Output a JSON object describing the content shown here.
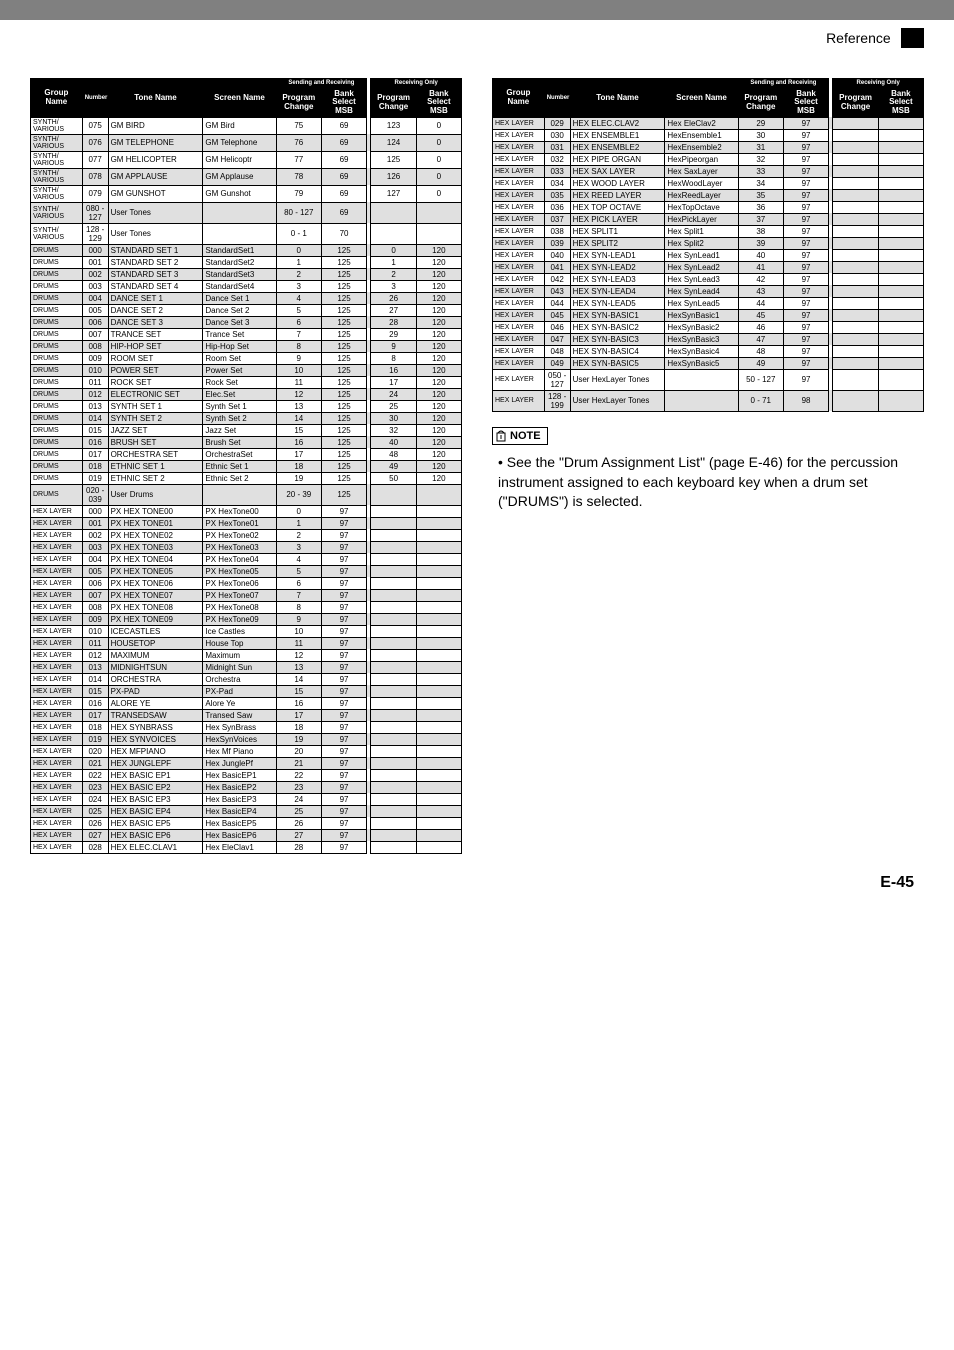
{
  "header": {
    "reference": "Reference"
  },
  "page_number": "E-45",
  "note": {
    "label": "NOTE",
    "text_prefix": "• See the \"Drum Assignment List\" (page E-46) for the percussion instrument assigned to each keyboard key when a drum set (\"DRUMS\") is selected."
  },
  "table_headers": {
    "group": "Group Name",
    "number": "Number",
    "tone": "Tone Name",
    "screen": "Screen Name",
    "sr": "Sending and Receiving",
    "ro": "Receiving Only",
    "pc": "Program Change",
    "bs": "Bank Select MSB"
  },
  "left_rows": [
    {
      "g": "SYNTH/ VARIOUS",
      "n": "075",
      "t": "GM BIRD",
      "s": "GM Bird",
      "pc": "75",
      "bs": "69",
      "pc2": "123",
      "bs2": "0",
      "sh": 0
    },
    {
      "g": "SYNTH/ VARIOUS",
      "n": "076",
      "t": "GM TELEPHONE",
      "s": "GM Telephone",
      "pc": "76",
      "bs": "69",
      "pc2": "124",
      "bs2": "0",
      "sh": 1
    },
    {
      "g": "SYNTH/ VARIOUS",
      "n": "077",
      "t": "GM HELICOPTER",
      "s": "GM Helicoptr",
      "pc": "77",
      "bs": "69",
      "pc2": "125",
      "bs2": "0",
      "sh": 0
    },
    {
      "g": "SYNTH/ VARIOUS",
      "n": "078",
      "t": "GM APPLAUSE",
      "s": "GM Applause",
      "pc": "78",
      "bs": "69",
      "pc2": "126",
      "bs2": "0",
      "sh": 1
    },
    {
      "g": "SYNTH/ VARIOUS",
      "n": "079",
      "t": "GM GUNSHOT",
      "s": "GM Gunshot",
      "pc": "79",
      "bs": "69",
      "pc2": "127",
      "bs2": "0",
      "sh": 0
    },
    {
      "g": "SYNTH/ VARIOUS",
      "n": "080 - 127",
      "t": "User Tones",
      "s": "",
      "pc": "80 - 127",
      "bs": "69",
      "pc2": "",
      "bs2": "",
      "sh": 1
    },
    {
      "g": "SYNTH/ VARIOUS",
      "n": "128 - 129",
      "t": "User Tones",
      "s": "",
      "pc": "0 - 1",
      "bs": "70",
      "pc2": "",
      "bs2": "",
      "sh": 0
    },
    {
      "g": "DRUMS",
      "n": "000",
      "t": "STANDARD SET 1",
      "s": "StandardSet1",
      "pc": "0",
      "bs": "125",
      "pc2": "0",
      "bs2": "120",
      "sh": 1
    },
    {
      "g": "DRUMS",
      "n": "001",
      "t": "STANDARD SET 2",
      "s": "StandardSet2",
      "pc": "1",
      "bs": "125",
      "pc2": "1",
      "bs2": "120",
      "sh": 0
    },
    {
      "g": "DRUMS",
      "n": "002",
      "t": "STANDARD SET 3",
      "s": "StandardSet3",
      "pc": "2",
      "bs": "125",
      "pc2": "2",
      "bs2": "120",
      "sh": 1
    },
    {
      "g": "DRUMS",
      "n": "003",
      "t": "STANDARD SET 4",
      "s": "StandardSet4",
      "pc": "3",
      "bs": "125",
      "pc2": "3",
      "bs2": "120",
      "sh": 0
    },
    {
      "g": "DRUMS",
      "n": "004",
      "t": "DANCE SET 1",
      "s": "Dance Set 1",
      "pc": "4",
      "bs": "125",
      "pc2": "26",
      "bs2": "120",
      "sh": 1
    },
    {
      "g": "DRUMS",
      "n": "005",
      "t": "DANCE SET 2",
      "s": "Dance Set 2",
      "pc": "5",
      "bs": "125",
      "pc2": "27",
      "bs2": "120",
      "sh": 0
    },
    {
      "g": "DRUMS",
      "n": "006",
      "t": "DANCE SET 3",
      "s": "Dance Set 3",
      "pc": "6",
      "bs": "125",
      "pc2": "28",
      "bs2": "120",
      "sh": 1
    },
    {
      "g": "DRUMS",
      "n": "007",
      "t": "TRANCE SET",
      "s": "Trance Set",
      "pc": "7",
      "bs": "125",
      "pc2": "29",
      "bs2": "120",
      "sh": 0
    },
    {
      "g": "DRUMS",
      "n": "008",
      "t": "HIP-HOP SET",
      "s": "Hip-Hop Set",
      "pc": "8",
      "bs": "125",
      "pc2": "9",
      "bs2": "120",
      "sh": 1
    },
    {
      "g": "DRUMS",
      "n": "009",
      "t": "ROOM SET",
      "s": "Room Set",
      "pc": "9",
      "bs": "125",
      "pc2": "8",
      "bs2": "120",
      "sh": 0
    },
    {
      "g": "DRUMS",
      "n": "010",
      "t": "POWER SET",
      "s": "Power Set",
      "pc": "10",
      "bs": "125",
      "pc2": "16",
      "bs2": "120",
      "sh": 1
    },
    {
      "g": "DRUMS",
      "n": "011",
      "t": "ROCK SET",
      "s": "Rock Set",
      "pc": "11",
      "bs": "125",
      "pc2": "17",
      "bs2": "120",
      "sh": 0
    },
    {
      "g": "DRUMS",
      "n": "012",
      "t": "ELECTRONIC SET",
      "s": "Elec.Set",
      "pc": "12",
      "bs": "125",
      "pc2": "24",
      "bs2": "120",
      "sh": 1
    },
    {
      "g": "DRUMS",
      "n": "013",
      "t": "SYNTH SET 1",
      "s": "Synth Set 1",
      "pc": "13",
      "bs": "125",
      "pc2": "25",
      "bs2": "120",
      "sh": 0
    },
    {
      "g": "DRUMS",
      "n": "014",
      "t": "SYNTH SET 2",
      "s": "Synth Set 2",
      "pc": "14",
      "bs": "125",
      "pc2": "30",
      "bs2": "120",
      "sh": 1
    },
    {
      "g": "DRUMS",
      "n": "015",
      "t": "JAZZ SET",
      "s": "Jazz Set",
      "pc": "15",
      "bs": "125",
      "pc2": "32",
      "bs2": "120",
      "sh": 0
    },
    {
      "g": "DRUMS",
      "n": "016",
      "t": "BRUSH SET",
      "s": "Brush Set",
      "pc": "16",
      "bs": "125",
      "pc2": "40",
      "bs2": "120",
      "sh": 1
    },
    {
      "g": "DRUMS",
      "n": "017",
      "t": "ORCHESTRA SET",
      "s": "OrchestraSet",
      "pc": "17",
      "bs": "125",
      "pc2": "48",
      "bs2": "120",
      "sh": 0
    },
    {
      "g": "DRUMS",
      "n": "018",
      "t": "ETHNIC SET 1",
      "s": "Ethnic Set 1",
      "pc": "18",
      "bs": "125",
      "pc2": "49",
      "bs2": "120",
      "sh": 1
    },
    {
      "g": "DRUMS",
      "n": "019",
      "t": "ETHNIC SET 2",
      "s": "Ethnic Set 2",
      "pc": "19",
      "bs": "125",
      "pc2": "50",
      "bs2": "120",
      "sh": 0
    },
    {
      "g": "DRUMS",
      "n": "020 - 039",
      "t": "User Drums",
      "s": "",
      "pc": "20 - 39",
      "bs": "125",
      "pc2": "",
      "bs2": "",
      "sh": 1
    },
    {
      "g": "HEX LAYER",
      "n": "000",
      "t": "PX HEX TONE00",
      "s": "PX HexTone00",
      "pc": "0",
      "bs": "97",
      "pc2": "",
      "bs2": "",
      "sh": 0
    },
    {
      "g": "HEX LAYER",
      "n": "001",
      "t": "PX HEX TONE01",
      "s": "PX HexTone01",
      "pc": "1",
      "bs": "97",
      "pc2": "",
      "bs2": "",
      "sh": 1
    },
    {
      "g": "HEX LAYER",
      "n": "002",
      "t": "PX HEX TONE02",
      "s": "PX HexTone02",
      "pc": "2",
      "bs": "97",
      "pc2": "",
      "bs2": "",
      "sh": 0
    },
    {
      "g": "HEX LAYER",
      "n": "003",
      "t": "PX HEX TONE03",
      "s": "PX HexTone03",
      "pc": "3",
      "bs": "97",
      "pc2": "",
      "bs2": "",
      "sh": 1
    },
    {
      "g": "HEX LAYER",
      "n": "004",
      "t": "PX HEX TONE04",
      "s": "PX HexTone04",
      "pc": "4",
      "bs": "97",
      "pc2": "",
      "bs2": "",
      "sh": 0
    },
    {
      "g": "HEX LAYER",
      "n": "005",
      "t": "PX HEX TONE05",
      "s": "PX HexTone05",
      "pc": "5",
      "bs": "97",
      "pc2": "",
      "bs2": "",
      "sh": 1
    },
    {
      "g": "HEX LAYER",
      "n": "006",
      "t": "PX HEX TONE06",
      "s": "PX HexTone06",
      "pc": "6",
      "bs": "97",
      "pc2": "",
      "bs2": "",
      "sh": 0
    },
    {
      "g": "HEX LAYER",
      "n": "007",
      "t": "PX HEX TONE07",
      "s": "PX HexTone07",
      "pc": "7",
      "bs": "97",
      "pc2": "",
      "bs2": "",
      "sh": 1
    },
    {
      "g": "HEX LAYER",
      "n": "008",
      "t": "PX HEX TONE08",
      "s": "PX HexTone08",
      "pc": "8",
      "bs": "97",
      "pc2": "",
      "bs2": "",
      "sh": 0
    },
    {
      "g": "HEX LAYER",
      "n": "009",
      "t": "PX HEX TONE09",
      "s": "PX HexTone09",
      "pc": "9",
      "bs": "97",
      "pc2": "",
      "bs2": "",
      "sh": 1
    },
    {
      "g": "HEX LAYER",
      "n": "010",
      "t": "ICECASTLES",
      "s": "Ice Castles",
      "pc": "10",
      "bs": "97",
      "pc2": "",
      "bs2": "",
      "sh": 0
    },
    {
      "g": "HEX LAYER",
      "n": "011",
      "t": "HOUSETOP",
      "s": "House Top",
      "pc": "11",
      "bs": "97",
      "pc2": "",
      "bs2": "",
      "sh": 1
    },
    {
      "g": "HEX LAYER",
      "n": "012",
      "t": "MAXIMUM",
      "s": "Maximum",
      "pc": "12",
      "bs": "97",
      "pc2": "",
      "bs2": "",
      "sh": 0
    },
    {
      "g": "HEX LAYER",
      "n": "013",
      "t": "MIDNIGHTSUN",
      "s": "Midnight Sun",
      "pc": "13",
      "bs": "97",
      "pc2": "",
      "bs2": "",
      "sh": 1
    },
    {
      "g": "HEX LAYER",
      "n": "014",
      "t": "ORCHESTRA",
      "s": "Orchestra",
      "pc": "14",
      "bs": "97",
      "pc2": "",
      "bs2": "",
      "sh": 0
    },
    {
      "g": "HEX LAYER",
      "n": "015",
      "t": "PX-PAD",
      "s": "PX-Pad",
      "pc": "15",
      "bs": "97",
      "pc2": "",
      "bs2": "",
      "sh": 1
    },
    {
      "g": "HEX LAYER",
      "n": "016",
      "t": "ALORE YE",
      "s": "Alore Ye",
      "pc": "16",
      "bs": "97",
      "pc2": "",
      "bs2": "",
      "sh": 0
    },
    {
      "g": "HEX LAYER",
      "n": "017",
      "t": "TRANSEDSAW",
      "s": "Transed Saw",
      "pc": "17",
      "bs": "97",
      "pc2": "",
      "bs2": "",
      "sh": 1
    },
    {
      "g": "HEX LAYER",
      "n": "018",
      "t": "HEX SYNBRASS",
      "s": "Hex SynBrass",
      "pc": "18",
      "bs": "97",
      "pc2": "",
      "bs2": "",
      "sh": 0
    },
    {
      "g": "HEX LAYER",
      "n": "019",
      "t": "HEX SYNVOICES",
      "s": "HexSynVoices",
      "pc": "19",
      "bs": "97",
      "pc2": "",
      "bs2": "",
      "sh": 1
    },
    {
      "g": "HEX LAYER",
      "n": "020",
      "t": "HEX MFPIANO",
      "s": "Hex Mf Piano",
      "pc": "20",
      "bs": "97",
      "pc2": "",
      "bs2": "",
      "sh": 0
    },
    {
      "g": "HEX LAYER",
      "n": "021",
      "t": "HEX JUNGLEPF",
      "s": "Hex JunglePf",
      "pc": "21",
      "bs": "97",
      "pc2": "",
      "bs2": "",
      "sh": 1
    },
    {
      "g": "HEX LAYER",
      "n": "022",
      "t": "HEX BASIC EP1",
      "s": "Hex BasicEP1",
      "pc": "22",
      "bs": "97",
      "pc2": "",
      "bs2": "",
      "sh": 0
    },
    {
      "g": "HEX LAYER",
      "n": "023",
      "t": "HEX BASIC EP2",
      "s": "Hex BasicEP2",
      "pc": "23",
      "bs": "97",
      "pc2": "",
      "bs2": "",
      "sh": 1
    },
    {
      "g": "HEX LAYER",
      "n": "024",
      "t": "HEX BASIC EP3",
      "s": "Hex BasicEP3",
      "pc": "24",
      "bs": "97",
      "pc2": "",
      "bs2": "",
      "sh": 0
    },
    {
      "g": "HEX LAYER",
      "n": "025",
      "t": "HEX BASIC EP4",
      "s": "Hex BasicEP4",
      "pc": "25",
      "bs": "97",
      "pc2": "",
      "bs2": "",
      "sh": 1
    },
    {
      "g": "HEX LAYER",
      "n": "026",
      "t": "HEX BASIC EP5",
      "s": "Hex BasicEP5",
      "pc": "26",
      "bs": "97",
      "pc2": "",
      "bs2": "",
      "sh": 0
    },
    {
      "g": "HEX LAYER",
      "n": "027",
      "t": "HEX BASIC EP6",
      "s": "Hex BasicEP6",
      "pc": "27",
      "bs": "97",
      "pc2": "",
      "bs2": "",
      "sh": 1
    },
    {
      "g": "HEX LAYER",
      "n": "028",
      "t": "HEX ELEC.CLAV1",
      "s": "Hex EleClav1",
      "pc": "28",
      "bs": "97",
      "pc2": "",
      "bs2": "",
      "sh": 0
    }
  ],
  "right_rows": [
    {
      "g": "HEX LAYER",
      "n": "029",
      "t": "HEX ELEC.CLAV2",
      "s": "Hex EleClav2",
      "pc": "29",
      "bs": "97",
      "pc2": "",
      "bs2": "",
      "sh": 1
    },
    {
      "g": "HEX LAYER",
      "n": "030",
      "t": "HEX ENSEMBLE1",
      "s": "HexEnsemble1",
      "pc": "30",
      "bs": "97",
      "pc2": "",
      "bs2": "",
      "sh": 0
    },
    {
      "g": "HEX LAYER",
      "n": "031",
      "t": "HEX ENSEMBLE2",
      "s": "HexEnsemble2",
      "pc": "31",
      "bs": "97",
      "pc2": "",
      "bs2": "",
      "sh": 1
    },
    {
      "g": "HEX LAYER",
      "n": "032",
      "t": "HEX PIPE ORGAN",
      "s": "HexPipeorgan",
      "pc": "32",
      "bs": "97",
      "pc2": "",
      "bs2": "",
      "sh": 0
    },
    {
      "g": "HEX LAYER",
      "n": "033",
      "t": "HEX SAX LAYER",
      "s": "Hex SaxLayer",
      "pc": "33",
      "bs": "97",
      "pc2": "",
      "bs2": "",
      "sh": 1
    },
    {
      "g": "HEX LAYER",
      "n": "034",
      "t": "HEX WOOD LAYER",
      "s": "HexWoodLayer",
      "pc": "34",
      "bs": "97",
      "pc2": "",
      "bs2": "",
      "sh": 0
    },
    {
      "g": "HEX LAYER",
      "n": "035",
      "t": "HEX REED LAYER",
      "s": "HexReedLayer",
      "pc": "35",
      "bs": "97",
      "pc2": "",
      "bs2": "",
      "sh": 1
    },
    {
      "g": "HEX LAYER",
      "n": "036",
      "t": "HEX TOP OCTAVE",
      "s": "HexTopOctave",
      "pc": "36",
      "bs": "97",
      "pc2": "",
      "bs2": "",
      "sh": 0
    },
    {
      "g": "HEX LAYER",
      "n": "037",
      "t": "HEX PICK LAYER",
      "s": "HexPickLayer",
      "pc": "37",
      "bs": "97",
      "pc2": "",
      "bs2": "",
      "sh": 1
    },
    {
      "g": "HEX LAYER",
      "n": "038",
      "t": "HEX SPLIT1",
      "s": "Hex Split1",
      "pc": "38",
      "bs": "97",
      "pc2": "",
      "bs2": "",
      "sh": 0
    },
    {
      "g": "HEX LAYER",
      "n": "039",
      "t": "HEX SPLIT2",
      "s": "Hex Split2",
      "pc": "39",
      "bs": "97",
      "pc2": "",
      "bs2": "",
      "sh": 1
    },
    {
      "g": "HEX LAYER",
      "n": "040",
      "t": "HEX SYN-LEAD1",
      "s": "Hex SynLead1",
      "pc": "40",
      "bs": "97",
      "pc2": "",
      "bs2": "",
      "sh": 0
    },
    {
      "g": "HEX LAYER",
      "n": "041",
      "t": "HEX SYN-LEAD2",
      "s": "Hex SynLead2",
      "pc": "41",
      "bs": "97",
      "pc2": "",
      "bs2": "",
      "sh": 1
    },
    {
      "g": "HEX LAYER",
      "n": "042",
      "t": "HEX SYN-LEAD3",
      "s": "Hex SynLead3",
      "pc": "42",
      "bs": "97",
      "pc2": "",
      "bs2": "",
      "sh": 0
    },
    {
      "g": "HEX LAYER",
      "n": "043",
      "t": "HEX SYN-LEAD4",
      "s": "Hex SynLead4",
      "pc": "43",
      "bs": "97",
      "pc2": "",
      "bs2": "",
      "sh": 1
    },
    {
      "g": "HEX LAYER",
      "n": "044",
      "t": "HEX SYN-LEAD5",
      "s": "Hex SynLead5",
      "pc": "44",
      "bs": "97",
      "pc2": "",
      "bs2": "",
      "sh": 0
    },
    {
      "g": "HEX LAYER",
      "n": "045",
      "t": "HEX SYN-BASIC1",
      "s": "HexSynBasic1",
      "pc": "45",
      "bs": "97",
      "pc2": "",
      "bs2": "",
      "sh": 1
    },
    {
      "g": "HEX LAYER",
      "n": "046",
      "t": "HEX SYN-BASIC2",
      "s": "HexSynBasic2",
      "pc": "46",
      "bs": "97",
      "pc2": "",
      "bs2": "",
      "sh": 0
    },
    {
      "g": "HEX LAYER",
      "n": "047",
      "t": "HEX SYN-BASIC3",
      "s": "HexSynBasic3",
      "pc": "47",
      "bs": "97",
      "pc2": "",
      "bs2": "",
      "sh": 1
    },
    {
      "g": "HEX LAYER",
      "n": "048",
      "t": "HEX SYN-BASIC4",
      "s": "HexSynBasic4",
      "pc": "48",
      "bs": "97",
      "pc2": "",
      "bs2": "",
      "sh": 0
    },
    {
      "g": "HEX LAYER",
      "n": "049",
      "t": "HEX SYN-BASIC5",
      "s": "HexSynBasic5",
      "pc": "49",
      "bs": "97",
      "pc2": "",
      "bs2": "",
      "sh": 1
    },
    {
      "g": "HEX LAYER",
      "n": "050 - 127",
      "t": "User HexLayer Tones",
      "s": "",
      "pc": "50 - 127",
      "bs": "97",
      "pc2": "",
      "bs2": "",
      "sh": 0
    },
    {
      "g": "HEX LAYER",
      "n": "128 - 199",
      "t": "User HexLayer Tones",
      "s": "",
      "pc": "0 - 71",
      "bs": "98",
      "pc2": "",
      "bs2": "",
      "sh": 1
    }
  ]
}
